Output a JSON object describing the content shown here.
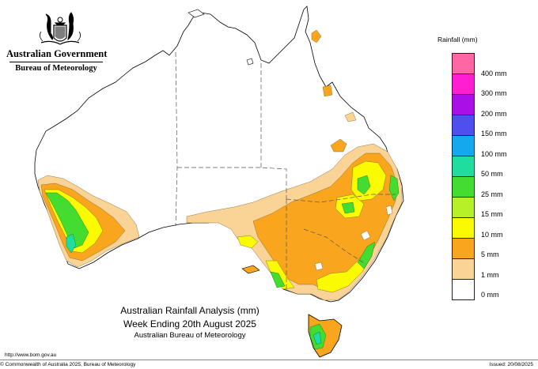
{
  "header": {
    "government": "Australian Government",
    "bureau": "Bureau of Meteorology"
  },
  "legend": {
    "title": "Rainfall (mm)",
    "classes": [
      {
        "label": "",
        "color": "#ff66a3"
      },
      {
        "label": "400 mm",
        "color": "#ff1ed2"
      },
      {
        "label": "300 mm",
        "color": "#aa0fe8"
      },
      {
        "label": "200 mm",
        "color": "#4f4ff0"
      },
      {
        "label": "150 mm",
        "color": "#14a8ee"
      },
      {
        "label": "100 mm",
        "color": "#1fdd9e"
      },
      {
        "label": "50 mm",
        "color": "#44dc30"
      },
      {
        "label": "25 mm",
        "color": "#b6f026"
      },
      {
        "label": "15 mm",
        "color": "#fafa00"
      },
      {
        "label": "10 mm",
        "color": "#f9a61e"
      },
      {
        "label": "5 mm",
        "color": "#fad397"
      },
      {
        "label": "1 mm",
        "color": "#ffffff"
      },
      {
        "label": "0 mm",
        "color": ""
      }
    ]
  },
  "title": {
    "line1": "Australian Rainfall Analysis (mm)",
    "line2": "Week Ending 20th August 2025",
    "line3": "Australian Bureau of Meteorology"
  },
  "footer": {
    "url": "http://www.bom.gov.au",
    "copyright": "© Commonwealth of Australia 2025, Bureau of Meteorology",
    "issued": "Issued: 20/08/2025"
  },
  "map_colors": {
    "r1": "#fad397",
    "r5": "#f9a61e",
    "r10": "#fafa00",
    "r15": "#b6f026",
    "r25": "#44dc30",
    "r50": "#1fdd9e",
    "r100": "#14a8ee",
    "r200": "#4f4ff0"
  }
}
